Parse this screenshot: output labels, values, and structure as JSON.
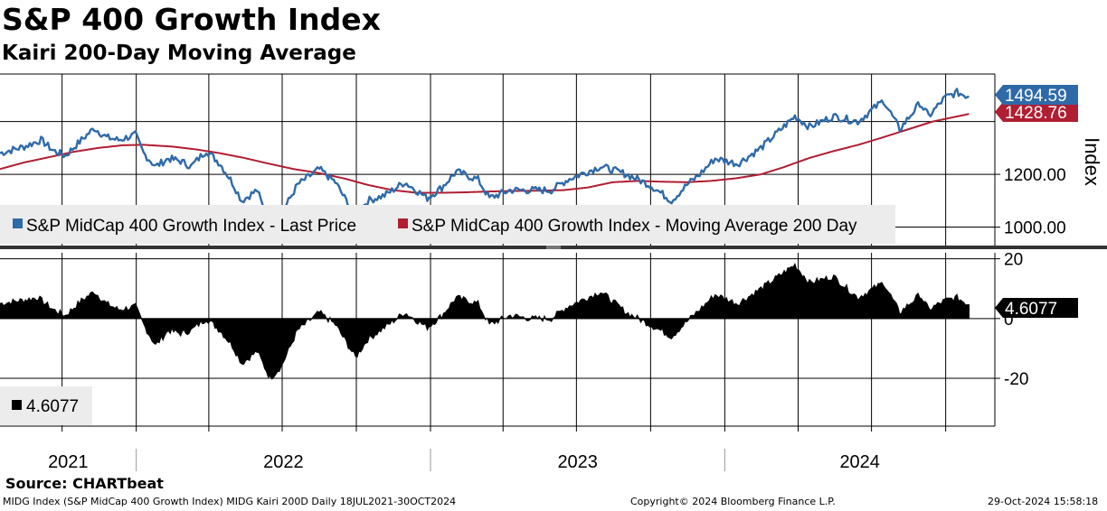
{
  "header": {
    "title": "S&P 400 Growth Index",
    "subtitle": "Kairi 200-Day Moving Average"
  },
  "colors": {
    "price_line": "#2f6aa8",
    "ma_line": "#b01e32",
    "kairi_fill": "#000000",
    "price_tag": "#2f6aa8",
    "ma_tag": "#b01e32",
    "kairi_tag": "#000000",
    "legend_bg": "#ececec",
    "grid": "#000000"
  },
  "chart_data": [
    {
      "type": "line",
      "ylabel": "Index",
      "ylim": [
        930,
        1580
      ],
      "y_ticks": [
        1000,
        1200
      ],
      "y_tick_labels": [
        "1000.00",
        "1200.00"
      ],
      "legend": [
        {
          "name": "S&P MidCap 400 Growth Index - Last Price",
          "color": "#2f6aa8"
        },
        {
          "name": "S&P MidCap 400 Growth Index - Moving Average 200 Day",
          "color": "#b01e32"
        }
      ],
      "last_values": {
        "price": "1494.59",
        "ma": "1428.76"
      },
      "series": [
        {
          "name": "S&P MidCap 400 Growth Index - Last Price",
          "points": [
            [
              "2021-07-16",
              1280
            ],
            [
              "2021-08-15",
              1305
            ],
            [
              "2021-09-05",
              1330
            ],
            [
              "2021-09-20",
              1290
            ],
            [
              "2021-10-05",
              1270
            ],
            [
              "2021-10-25",
              1330
            ],
            [
              "2021-11-10",
              1375
            ],
            [
              "2021-11-25",
              1340
            ],
            [
              "2021-12-10",
              1330
            ],
            [
              "2021-12-31",
              1350
            ],
            [
              "2022-01-10",
              1280
            ],
            [
              "2022-01-25",
              1230
            ],
            [
              "2022-02-10",
              1260
            ],
            [
              "2022-02-25",
              1250
            ],
            [
              "2022-03-10",
              1230
            ],
            [
              "2022-03-29",
              1290
            ],
            [
              "2022-04-15",
              1240
            ],
            [
              "2022-04-30",
              1170
            ],
            [
              "2022-05-12",
              1100
            ],
            [
              "2022-05-31",
              1140
            ],
            [
              "2022-06-16",
              1000
            ],
            [
              "2022-06-30",
              1050
            ],
            [
              "2022-07-20",
              1160
            ],
            [
              "2022-08-16",
              1220
            ],
            [
              "2022-09-05",
              1170
            ],
            [
              "2022-09-30",
              1040
            ],
            [
              "2022-10-15",
              1100
            ],
            [
              "2022-11-05",
              1120
            ],
            [
              "2022-11-30",
              1170
            ],
            [
              "2022-12-28",
              1110
            ],
            [
              "2023-01-15",
              1150
            ],
            [
              "2023-02-02",
              1210
            ],
            [
              "2023-03-01",
              1180
            ],
            [
              "2023-03-15",
              1110
            ],
            [
              "2023-04-10",
              1140
            ],
            [
              "2023-05-05",
              1140
            ],
            [
              "2023-05-31",
              1140
            ],
            [
              "2023-06-20",
              1180
            ],
            [
              "2023-07-31",
              1230
            ],
            [
              "2023-09-01",
              1200
            ],
            [
              "2023-09-30",
              1160
            ],
            [
              "2023-10-27",
              1100
            ],
            [
              "2023-11-15",
              1160
            ],
            [
              "2023-12-01",
              1200
            ],
            [
              "2023-12-20",
              1260
            ],
            [
              "2024-01-17",
              1240
            ],
            [
              "2024-02-15",
              1300
            ],
            [
              "2024-03-28",
              1420
            ],
            [
              "2024-04-15",
              1380
            ],
            [
              "2024-05-15",
              1420
            ],
            [
              "2024-06-14",
              1400
            ],
            [
              "2024-07-16",
              1480
            ],
            [
              "2024-08-05",
              1370
            ],
            [
              "2024-08-30",
              1470
            ],
            [
              "2024-09-10",
              1420
            ],
            [
              "2024-09-30",
              1490
            ],
            [
              "2024-10-15",
              1510
            ],
            [
              "2024-10-30",
              1494.59
            ]
          ]
        },
        {
          "name": "S&P MidCap 400 Growth Index - Moving Average 200 Day",
          "points": [
            [
              "2021-07-16",
              1220
            ],
            [
              "2021-08-15",
              1245
            ],
            [
              "2021-09-15",
              1265
            ],
            [
              "2021-10-15",
              1285
            ],
            [
              "2021-11-15",
              1300
            ],
            [
              "2021-12-15",
              1310
            ],
            [
              "2022-01-10",
              1312
            ],
            [
              "2022-02-15",
              1305
            ],
            [
              "2022-03-15",
              1295
            ],
            [
              "2022-04-15",
              1280
            ],
            [
              "2022-05-15",
              1262
            ],
            [
              "2022-06-15",
              1240
            ],
            [
              "2022-07-15",
              1220
            ],
            [
              "2022-08-15",
              1205
            ],
            [
              "2022-09-15",
              1185
            ],
            [
              "2022-10-15",
              1160
            ],
            [
              "2022-11-15",
              1140
            ],
            [
              "2022-12-15",
              1130
            ],
            [
              "2023-01-15",
              1130
            ],
            [
              "2023-02-15",
              1132
            ],
            [
              "2023-03-15",
              1135
            ],
            [
              "2023-04-15",
              1137
            ],
            [
              "2023-05-15",
              1138
            ],
            [
              "2023-06-15",
              1140
            ],
            [
              "2023-07-15",
              1150
            ],
            [
              "2023-08-15",
              1170
            ],
            [
              "2023-09-15",
              1175
            ],
            [
              "2023-10-15",
              1172
            ],
            [
              "2023-11-15",
              1170
            ],
            [
              "2023-12-15",
              1175
            ],
            [
              "2024-01-15",
              1185
            ],
            [
              "2024-02-15",
              1200
            ],
            [
              "2024-03-15",
              1228
            ],
            [
              "2024-04-15",
              1262
            ],
            [
              "2024-05-15",
              1288
            ],
            [
              "2024-06-15",
              1312
            ],
            [
              "2024-07-15",
              1340
            ],
            [
              "2024-08-15",
              1370
            ],
            [
              "2024-09-15",
              1400
            ],
            [
              "2024-10-30",
              1428.76
            ]
          ]
        }
      ]
    },
    {
      "type": "area",
      "ylim": [
        -36,
        22
      ],
      "y_ticks": [
        20,
        0,
        -20
      ],
      "y_tick_labels": [
        "20",
        "0",
        "-20"
      ],
      "legend": [
        {
          "name": "4.6077",
          "color": "#000000"
        }
      ],
      "last_value": "4.6077",
      "series": [
        {
          "name": "Kairi 200D",
          "points": [
            [
              "2021-07-16",
              5
            ],
            [
              "2021-08-10",
              6
            ],
            [
              "2021-09-01",
              7
            ],
            [
              "2021-09-20",
              3
            ],
            [
              "2021-10-05",
              1
            ],
            [
              "2021-10-25",
              6
            ],
            [
              "2021-11-10",
              9
            ],
            [
              "2021-11-25",
              5
            ],
            [
              "2021-12-10",
              3
            ],
            [
              "2021-12-31",
              4
            ],
            [
              "2022-01-10",
              -2
            ],
            [
              "2022-01-25",
              -9
            ],
            [
              "2022-02-10",
              -4
            ],
            [
              "2022-02-25",
              -5
            ],
            [
              "2022-03-10",
              -4
            ],
            [
              "2022-03-29",
              0
            ],
            [
              "2022-04-15",
              -4
            ],
            [
              "2022-04-30",
              -9
            ],
            [
              "2022-05-12",
              -15
            ],
            [
              "2022-05-31",
              -11
            ],
            [
              "2022-06-16",
              -20
            ],
            [
              "2022-06-30",
              -16
            ],
            [
              "2022-07-20",
              -4
            ],
            [
              "2022-08-16",
              2
            ],
            [
              "2022-09-05",
              -2
            ],
            [
              "2022-09-30",
              -13
            ],
            [
              "2022-10-15",
              -7
            ],
            [
              "2022-11-05",
              -3
            ],
            [
              "2022-11-30",
              2
            ],
            [
              "2022-12-28",
              -3
            ],
            [
              "2023-01-15",
              1
            ],
            [
              "2023-02-02",
              7
            ],
            [
              "2023-03-01",
              5
            ],
            [
              "2023-03-15",
              -2
            ],
            [
              "2023-04-10",
              1
            ],
            [
              "2023-05-05",
              0
            ],
            [
              "2023-05-31",
              0
            ],
            [
              "2023-06-20",
              4
            ],
            [
              "2023-07-31",
              9
            ],
            [
              "2023-09-01",
              2
            ],
            [
              "2023-09-30",
              -2
            ],
            [
              "2023-10-27",
              -6
            ],
            [
              "2023-11-15",
              -1
            ],
            [
              "2023-12-01",
              3
            ],
            [
              "2023-12-20",
              8
            ],
            [
              "2024-01-17",
              5
            ],
            [
              "2024-02-15",
              10
            ],
            [
              "2024-03-28",
              18
            ],
            [
              "2024-04-15",
              12
            ],
            [
              "2024-05-15",
              14
            ],
            [
              "2024-06-14",
              7
            ],
            [
              "2024-07-16",
              12
            ],
            [
              "2024-08-05",
              2
            ],
            [
              "2024-08-30",
              8
            ],
            [
              "2024-09-10",
              3
            ],
            [
              "2024-09-30",
              6
            ],
            [
              "2024-10-15",
              7
            ],
            [
              "2024-10-30",
              4.6077
            ]
          ]
        }
      ]
    }
  ],
  "x_axis": {
    "start": "2021-07-16",
    "end": "2024-12-01",
    "year_labels": [
      {
        "label": "2021",
        "from": "2021-07-16",
        "to": "2022-01-01"
      },
      {
        "label": "2022",
        "from": "2022-01-01",
        "to": "2023-01-01"
      },
      {
        "label": "2023",
        "from": "2023-01-01",
        "to": "2024-01-01"
      },
      {
        "label": "2024",
        "from": "2024-01-01",
        "to": "2024-12-01"
      }
    ],
    "gridlines": [
      "2021-10-01",
      "2022-01-01",
      "2022-04-01",
      "2022-07-01",
      "2022-10-01",
      "2023-01-01",
      "2023-04-01",
      "2023-07-01",
      "2023-10-01",
      "2024-01-01",
      "2024-04-01",
      "2024-07-01",
      "2024-10-01"
    ]
  },
  "source": "Source: CHARTbeat",
  "footer": {
    "left": "MIDG Index (S&P MidCap 400 Growth Index) MIDG Kairi 200D  Daily 18JUL2021-30OCT2024",
    "center": "Copyright© 2024 Bloomberg Finance L.P.",
    "right": "29-Oct-2024 15:58:18"
  }
}
